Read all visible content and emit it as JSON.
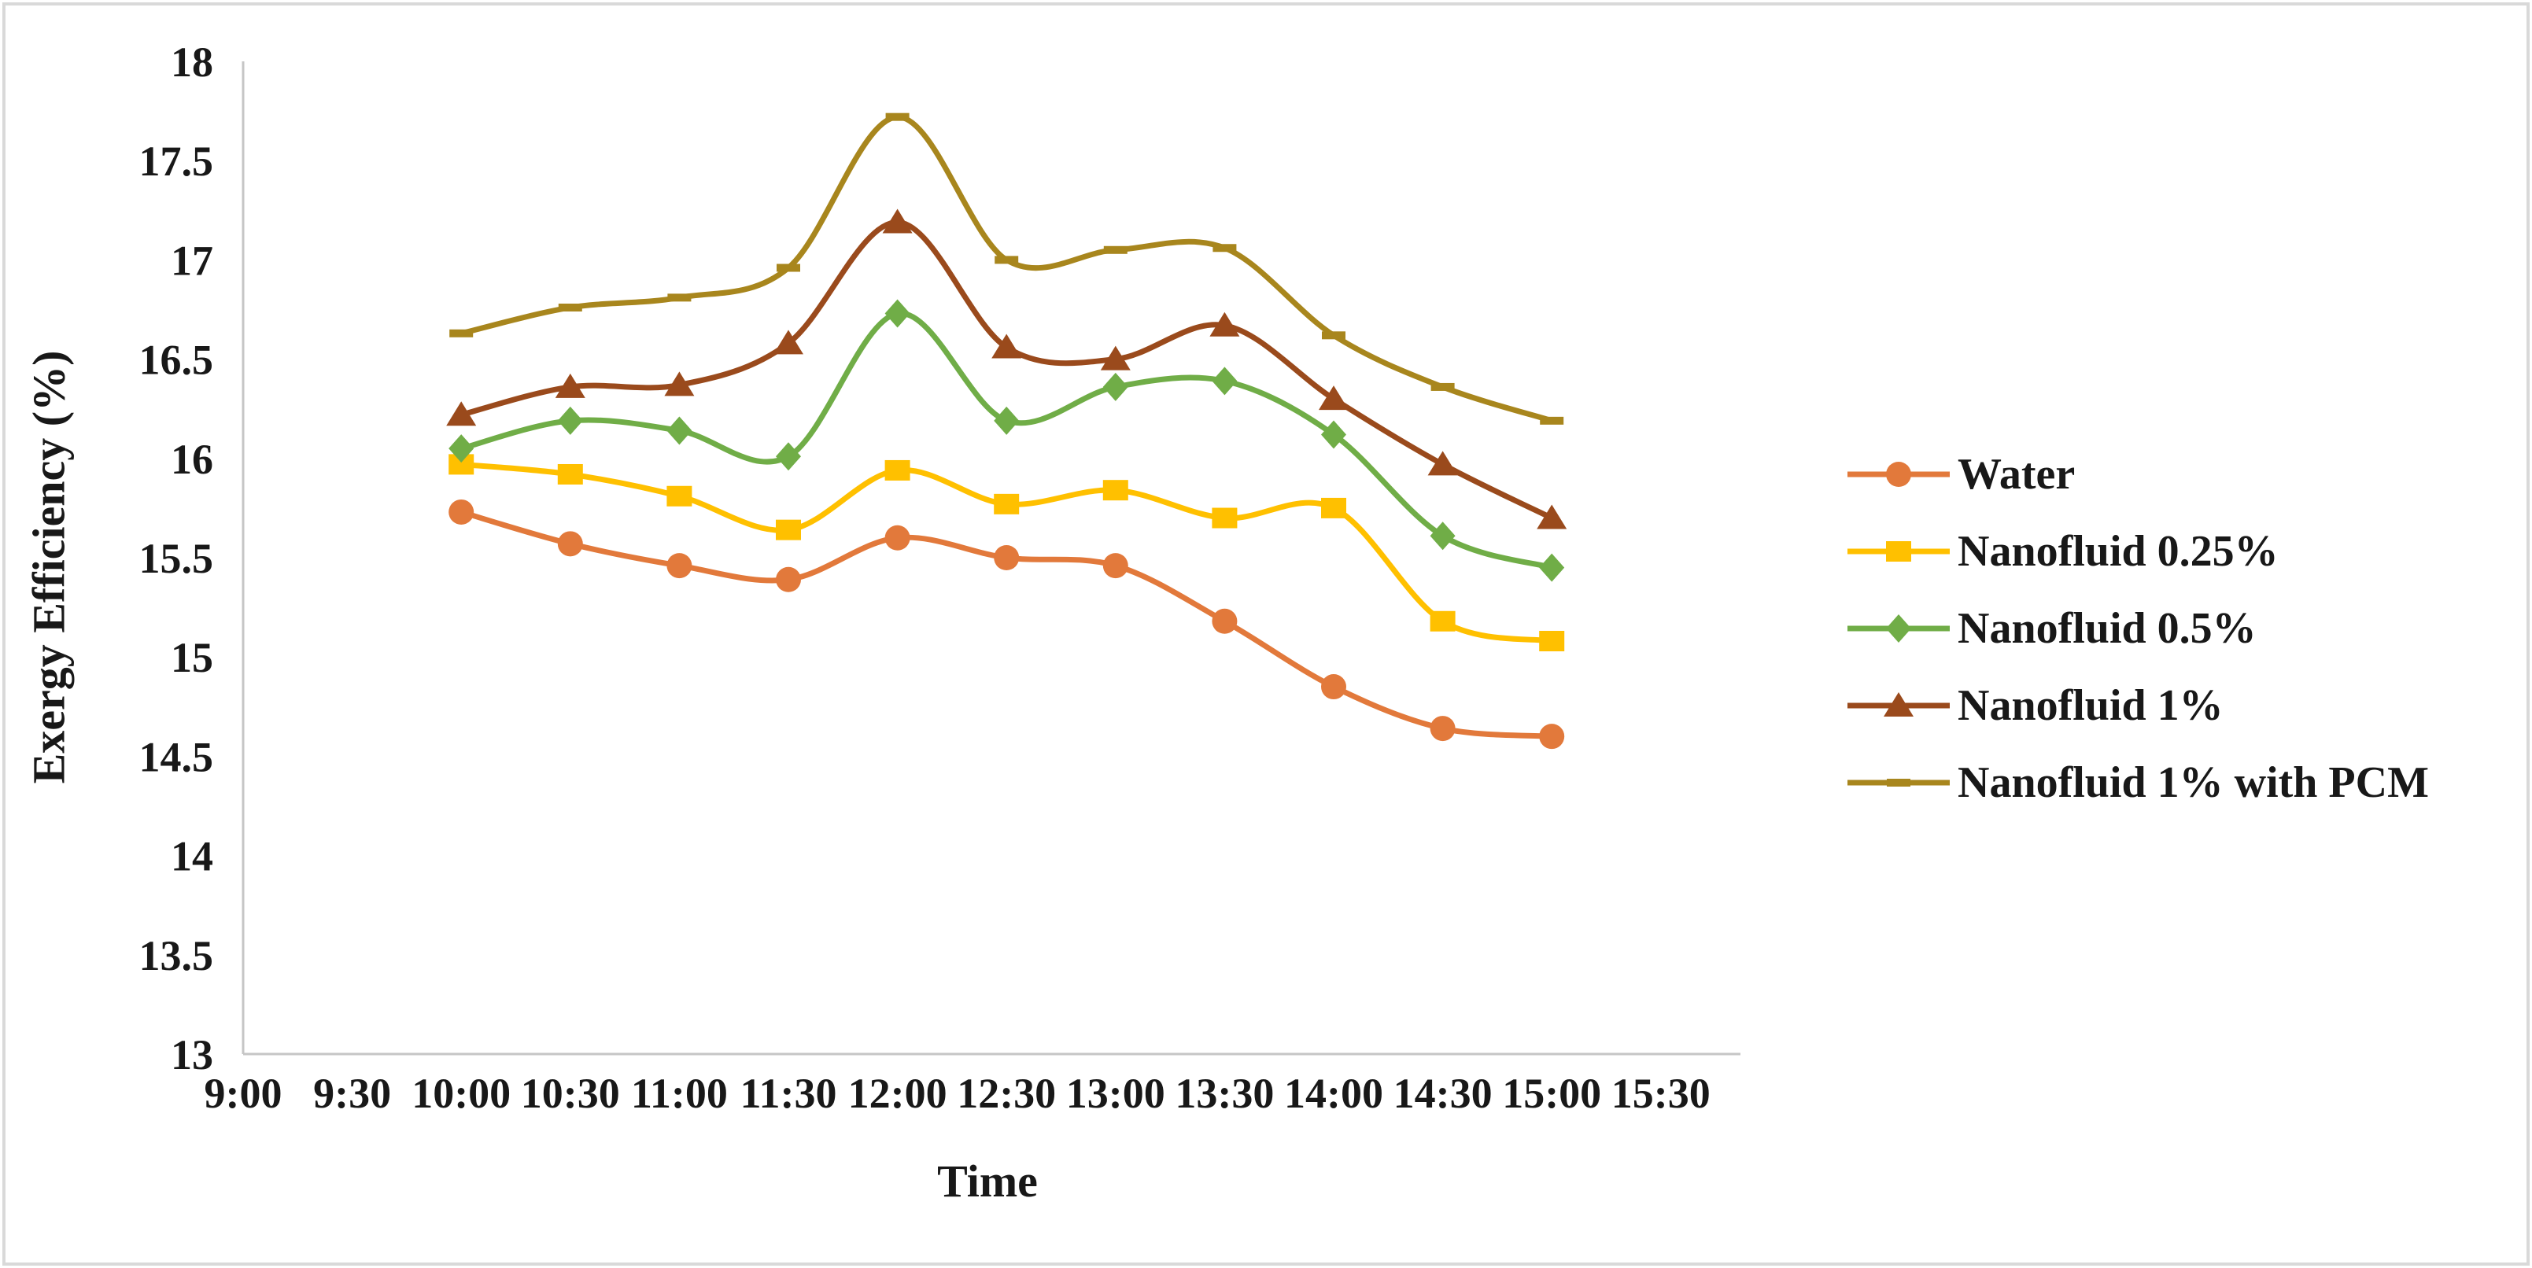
{
  "figure": {
    "background": "#ffffff",
    "border_color": "#d9d9d9"
  },
  "chart_data": {
    "type": "line",
    "title": "",
    "xlabel": "Time",
    "ylabel": "Exergy Efficiency (%)",
    "x_ticks": [
      "9:00",
      "9:30",
      "10:00",
      "10:30",
      "11:00",
      "11:30",
      "12:00",
      "12:30",
      "13:00",
      "13:30",
      "14:00",
      "14:30",
      "15:00",
      "15:30"
    ],
    "y_ticks": [
      13,
      13.5,
      14,
      14.5,
      15,
      15.5,
      16,
      16.5,
      17,
      17.5,
      18
    ],
    "ylim": [
      13,
      18
    ],
    "grid": false,
    "smoothed_lines": true,
    "legend_position": "right",
    "axis_color": "#c6c6c6",
    "text_color": "#181818",
    "categories": [
      "10:00",
      "10:30",
      "11:00",
      "11:30",
      "12:00",
      "12:30",
      "13:00",
      "13:30",
      "14:00",
      "14:30",
      "15:00"
    ],
    "series": [
      {
        "name": "Water",
        "color": "#e2793b",
        "marker": "circle",
        "values": [
          15.73,
          15.57,
          15.46,
          15.39,
          15.6,
          15.5,
          15.46,
          15.18,
          14.85,
          14.64,
          14.6
        ]
      },
      {
        "name": "Nanofluid 0.25%",
        "color": "#ffc000",
        "marker": "square",
        "values": [
          15.97,
          15.92,
          15.81,
          15.64,
          15.94,
          15.77,
          15.84,
          15.7,
          15.75,
          15.18,
          15.08
        ]
      },
      {
        "name": "Nanofluid 0.5%",
        "color": "#70ad47",
        "marker": "diamond",
        "values": [
          16.05,
          16.19,
          16.14,
          16.01,
          16.73,
          16.19,
          16.36,
          16.39,
          16.12,
          15.61,
          15.45
        ]
      },
      {
        "name": "Nanofluid 1%",
        "color": "#9a4a1c",
        "marker": "triangle",
        "values": [
          16.22,
          16.36,
          16.37,
          16.58,
          17.19,
          16.56,
          16.5,
          16.67,
          16.3,
          15.97,
          15.7
        ]
      },
      {
        "name": "Nanofluid 1% with PCM",
        "color": "#a8861d",
        "marker": "dash",
        "values": [
          16.63,
          16.76,
          16.81,
          16.96,
          17.72,
          17.0,
          17.05,
          17.06,
          16.62,
          16.36,
          16.19
        ]
      }
    ]
  }
}
